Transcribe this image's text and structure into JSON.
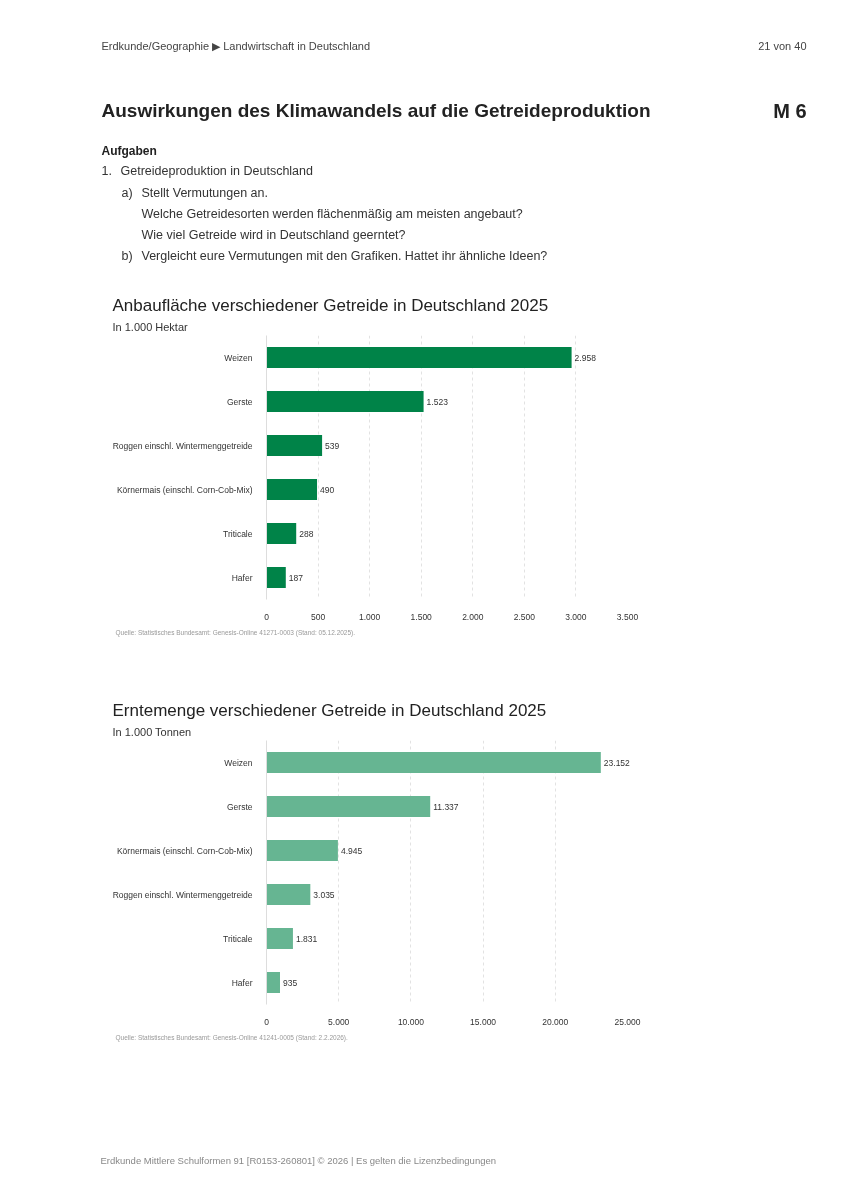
{
  "chart_data": [
    {
      "type": "other",
      "title": "Auswirkungen des Klimawandels auf die Getreideproduktion",
      "annotations": [
        "Erdkunde/Geographie ▶ Landwirtschaft in Deutschland",
        "21 von 40",
        "M 6",
        "Aufgaben",
        "1.",
        "Getreideproduktion in Deutschland",
        "a)",
        "Stellt Vermutungen an.",
        "Welche Getreidesorten werden flächenmäßig am meisten angebaut?",
        "Wie viel Getreide wird in Deutschland geerntet?",
        "b)",
        "Vergleicht eure Vermutungen mit den Grafiken. Hattet ihr ähnliche Ideen?"
      ]
    },
    {
      "type": "bar",
      "orientation": "horizontal",
      "title": "Anbaufläche verschiedener Getreide in Deutschland 2025",
      "subtitle": "In 1.000 Hektar",
      "categories": [
        "Weizen",
        "Gerste",
        "Roggen einschl. Wintermenggetreide",
        "Körnermais (einschl. Corn-Cob-Mix)",
        "Triticale",
        "Hafer"
      ],
      "values": [
        2958,
        1523,
        539,
        490,
        288,
        187
      ],
      "value_labels": [
        "2.958",
        "1.523",
        "539",
        "490",
        "288",
        "187"
      ],
      "color": "#008348",
      "xlim": [
        0,
        3500
      ],
      "xticks": [
        {
          "value": 0,
          "label": "0"
        },
        {
          "value": 500,
          "label": "500"
        },
        {
          "value": 1000,
          "label": "1.000"
        },
        {
          "value": 1500,
          "label": "1.500"
        },
        {
          "value": 2000,
          "label": "2.000"
        },
        {
          "value": 2500,
          "label": "2.500"
        },
        {
          "value": 3000,
          "label": "3.000"
        },
        {
          "value": 3500,
          "label": "3.500"
        }
      ],
      "grid": "x",
      "annotations": [
        "Quelle: Statistisches Bundesamt: Genesis-Online 41271-0003 (Stand: 05.12.2025)."
      ]
    },
    {
      "type": "bar",
      "orientation": "horizontal",
      "title": "Erntemenge verschiedener Getreide in Deutschland 2025",
      "subtitle": "In 1.000 Tonnen",
      "categories": [
        "Weizen",
        "Gerste",
        "Körnermais (einschl. Corn-Cob-Mix)",
        "Roggen einschl. Wintermenggetreide",
        "Triticale",
        "Hafer"
      ],
      "values": [
        23152,
        11337,
        4945,
        3035,
        1831,
        935
      ],
      "value_labels": [
        "23.152",
        "11.337",
        "4.945",
        "3.035",
        "1.831",
        "935"
      ],
      "color": "#66b592",
      "xlim": [
        0,
        25000
      ],
      "xticks": [
        {
          "value": 0,
          "label": "0"
        },
        {
          "value": 5000,
          "label": "5.000"
        },
        {
          "value": 10000,
          "label": "10.000"
        },
        {
          "value": 15000,
          "label": "15.000"
        },
        {
          "value": 20000,
          "label": "20.000"
        },
        {
          "value": 25000,
          "label": "25.000"
        }
      ],
      "grid": "x",
      "annotations": [
        "Quelle: Statistisches Bundesamt: Genesis-Online 41241-0005 (Stand: 2.2.2026)."
      ]
    },
    {
      "type": "other",
      "annotations": [
        "Erdkunde Mittlere Schulformen 91 [R0153-260801] © 2026 | Es gelten die Lizenzbedingungen"
      ]
    }
  ]
}
